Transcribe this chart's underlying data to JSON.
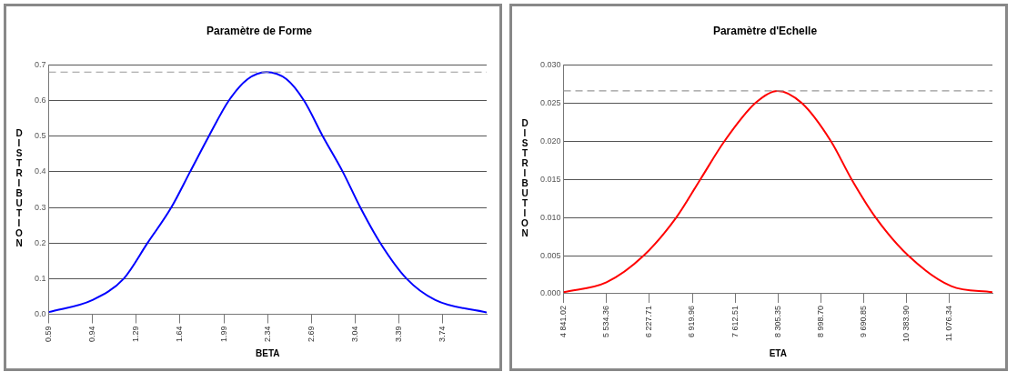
{
  "chart_data": [
    {
      "type": "line",
      "title": "Paramètre de Forme",
      "xlabel": "BETA",
      "ylabel": "DISTRIBUTION",
      "series": [
        {
          "color": "#0000ff",
          "x": [
            0.59,
            0.94,
            1.19,
            1.38,
            1.57,
            1.72,
            1.87,
            2.03,
            2.18,
            2.33,
            2.49,
            2.63,
            2.78,
            2.94,
            3.08,
            3.24,
            3.45,
            3.68,
            4.09
          ],
          "values": [
            0.006,
            0.04,
            0.1,
            0.2,
            0.3,
            0.4,
            0.5,
            0.6,
            0.66,
            0.68,
            0.66,
            0.6,
            0.5,
            0.4,
            0.3,
            0.2,
            0.1,
            0.04,
            0.005
          ]
        }
      ],
      "xlim": [
        0.59,
        4.09
      ],
      "xticks": [
        0.59,
        0.94,
        1.29,
        1.64,
        1.99,
        2.34,
        2.69,
        3.04,
        3.39,
        3.74
      ],
      "ylim": [
        0,
        0.7
      ],
      "yticks": [
        {
          "value": 0,
          "label": "0.0"
        },
        0.1,
        0.2,
        0.3,
        0.4,
        0.5,
        0.6,
        0.7
      ],
      "ref_lines": [
        {
          "axis": "y",
          "value": 0.68,
          "color": "#999999",
          "line_style": "dashed"
        }
      ],
      "grid": "y",
      "legend": false
    },
    {
      "type": "line",
      "title": "Paramètre d'Echelle",
      "xlabel": "ETA",
      "ylabel": "DISTRIBUTION",
      "series": [
        {
          "color": "#ff0000",
          "x": [
            4841.02,
            5534.36,
            6135,
            6662,
            7051,
            7440,
            7939,
            8300,
            8689,
            9160,
            9494,
            9882,
            10410,
            11104,
            11769
          ],
          "values": [
            0.0002,
            0.0015,
            0.005,
            0.01,
            0.015,
            0.02,
            0.025,
            0.0266,
            0.025,
            0.02,
            0.015,
            0.01,
            0.005,
            0.001,
            0.0002
          ]
        }
      ],
      "xlim": [
        4841.02,
        11769
      ],
      "xticks": [
        {
          "value": 4841.02,
          "label": "4 841.02"
        },
        {
          "value": 5534.36,
          "label": "5 534.36"
        },
        {
          "value": 6227.71,
          "label": "6 227.71"
        },
        {
          "value": 6919.96,
          "label": "6 919.96"
        },
        {
          "value": 7612.51,
          "label": "7 612.51"
        },
        {
          "value": 8305.35,
          "label": "8 305.35"
        },
        {
          "value": 8998.7,
          "label": "8 998.70"
        },
        {
          "value": 9690.85,
          "label": "9 690.85"
        },
        {
          "value": 10383.9,
          "label": "10 383.90"
        },
        {
          "value": 11076.34,
          "label": "11 076.34"
        }
      ],
      "ylim": [
        0,
        0.03
      ],
      "yticks": [
        {
          "value": 0,
          "label": "0.000"
        },
        {
          "value": 0.005,
          "label": "0.005"
        },
        {
          "value": 0.01,
          "label": "0.010"
        },
        {
          "value": 0.015,
          "label": "0.015"
        },
        {
          "value": 0.02,
          "label": "0.020"
        },
        {
          "value": 0.025,
          "label": "0.025"
        },
        {
          "value": 0.03,
          "label": "0.030"
        }
      ],
      "ref_lines": [
        {
          "axis": "y",
          "value": 0.0266,
          "color": "#999999",
          "line_style": "dashed"
        }
      ],
      "grid": "y",
      "legend": false
    }
  ]
}
